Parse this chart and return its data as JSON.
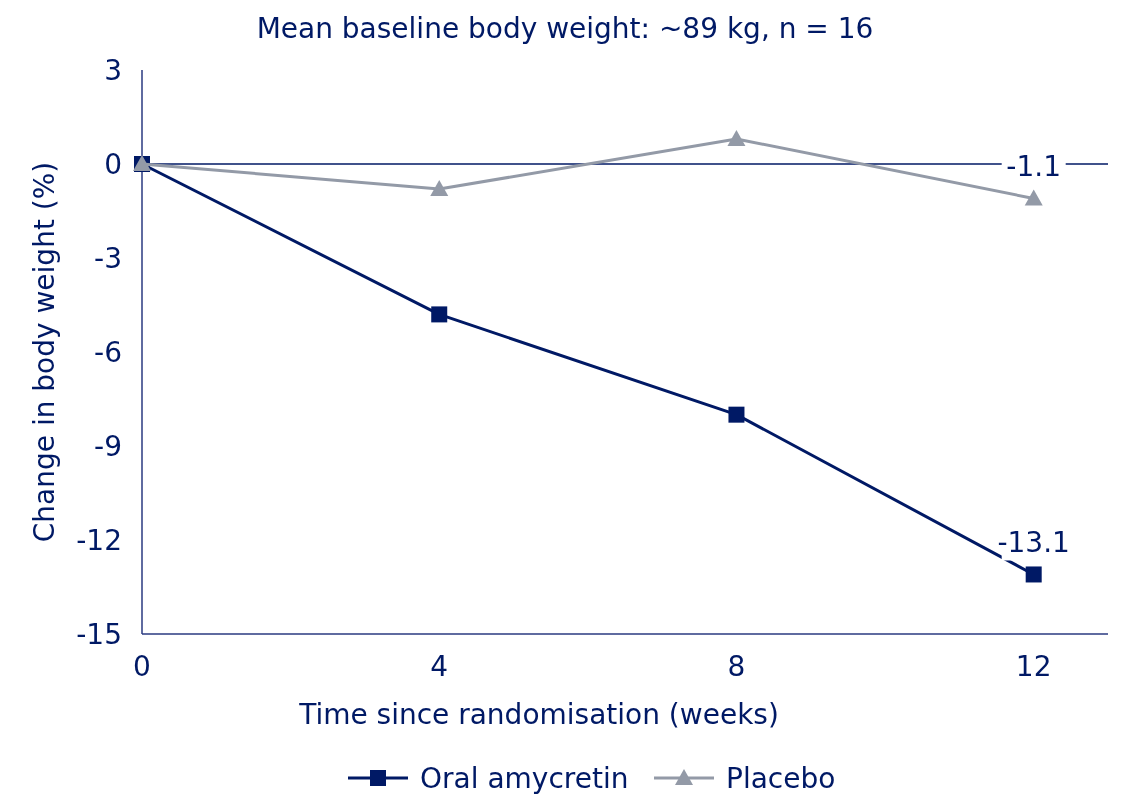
{
  "chart_data": {
    "type": "line",
    "title": "Mean baseline body weight: ~89 kg, n = 16",
    "xlabel": "Time since randomisation (weeks)",
    "ylabel": "Change in body weight (%)",
    "x": [
      0,
      4,
      8,
      12
    ],
    "series": [
      {
        "name": "Oral amycretin",
        "color": "#001965",
        "marker": "square",
        "values": [
          0,
          -4.8,
          -8.0,
          -13.1
        ],
        "value_labels": [
          null,
          null,
          null,
          "-13.1"
        ]
      },
      {
        "name": "Placebo",
        "color": "#939aa7",
        "marker": "triangle",
        "values": [
          0,
          -0.8,
          0.8,
          -1.1
        ],
        "value_labels": [
          null,
          null,
          null,
          "-1.1"
        ]
      }
    ],
    "xlim": [
      0,
      13
    ],
    "xticks": [
      0,
      4,
      8,
      12
    ],
    "ylim": [
      -15,
      3
    ],
    "yticks": [
      3,
      0,
      -3,
      -6,
      -9,
      -12,
      -15
    ],
    "ref_lines": [
      {
        "axis": "y",
        "value": 0,
        "color": "#001965"
      }
    ],
    "grid": false,
    "legend": "bottom",
    "line_style": "solid"
  }
}
